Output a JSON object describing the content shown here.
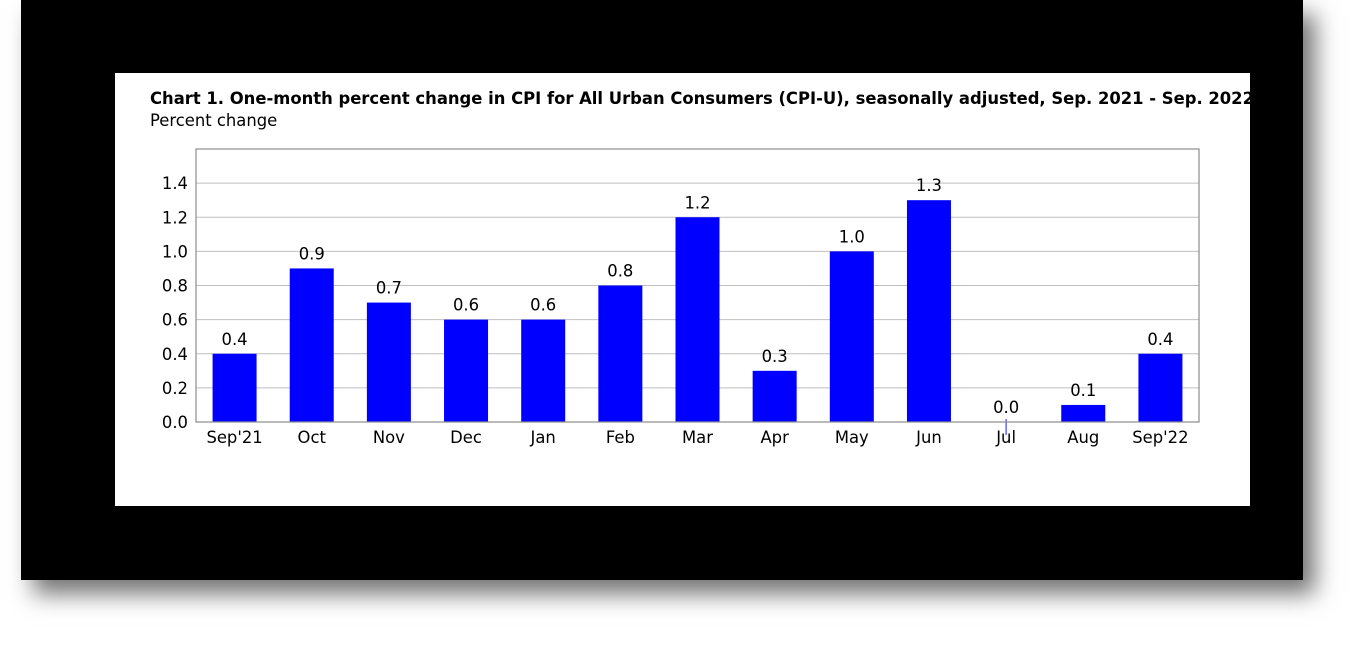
{
  "chart_data": {
    "type": "bar",
    "title": "Chart 1. One-month percent change in CPI for All Urban Consumers (CPI-U), seasonally adjusted, Sep. 2021 - Sep. 2022",
    "subtitle": "Percent change",
    "xlabel": "",
    "ylabel": "",
    "categories": [
      "Sep'21",
      "Oct",
      "Nov",
      "Dec",
      "Jan",
      "Feb",
      "Mar",
      "Apr",
      "May",
      "Jun",
      "Jul",
      "Aug",
      "Sep'22"
    ],
    "values": [
      0.4,
      0.9,
      0.7,
      0.6,
      0.6,
      0.8,
      1.2,
      0.3,
      1.0,
      1.3,
      0.0,
      0.1,
      0.4
    ],
    "value_labels": [
      "0.4",
      "0.9",
      "0.7",
      "0.6",
      "0.6",
      "0.8",
      "1.2",
      "0.3",
      "1.0",
      "1.3",
      "0.0",
      "0.1",
      "0.4"
    ],
    "ylim": [
      0,
      1.6
    ],
    "yticks": [
      0.0,
      0.2,
      0.4,
      0.6,
      0.8,
      1.0,
      1.2,
      1.4
    ],
    "ytick_labels": [
      "0.0",
      "0.2",
      "0.4",
      "0.6",
      "0.8",
      "1.0",
      "1.2",
      "1.4"
    ],
    "grid": true,
    "legend": "none",
    "colors": {
      "bar": "#0000FF",
      "grid": "#BFBFBF",
      "frame": "#000000",
      "panel": "#FFFFFF"
    }
  }
}
